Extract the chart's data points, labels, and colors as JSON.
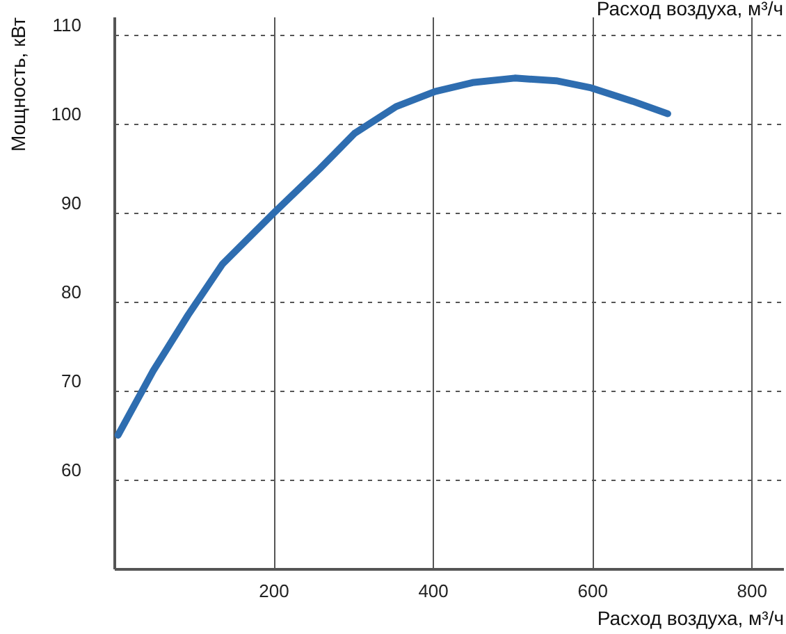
{
  "chart_data": {
    "type": "line",
    "xlabel": "Расход воздуха, м³/ч",
    "ylabel": "Мощность, кВт",
    "annotations": [
      "Расход воздуха, м³/ч"
    ],
    "x": [
      5,
      49,
      93,
      136,
      201,
      258,
      302,
      354,
      403,
      450,
      503,
      555,
      599,
      651,
      695
    ],
    "series": [
      {
        "color": "#2e6db0",
        "values": [
          65,
          72.2,
          78.5,
          84.2,
          90,
          94.9,
          98.9,
          101.9,
          103.6,
          104.6,
          105.1,
          104.8,
          104,
          102.5,
          101.1
        ]
      }
    ],
    "xlim": [
      0,
      840
    ],
    "ylim": [
      50,
      112
    ],
    "xticks": [
      200,
      400,
      600,
      800
    ],
    "yticks": [
      60,
      70,
      80,
      90,
      100,
      110
    ],
    "grid": true,
    "marker": "none",
    "line_style": "solid"
  }
}
